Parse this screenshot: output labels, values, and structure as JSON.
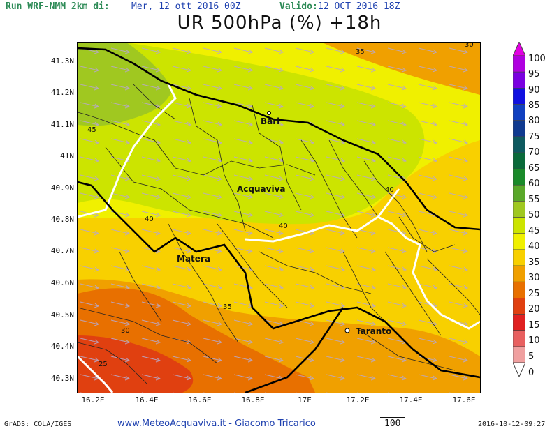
{
  "header": {
    "run_label": "Run WRF-NMM 2km di:",
    "run_date": "Mer, 12 ott 2016 00Z",
    "valid_label": "Valido:",
    "valid_date": "12 OCT 2016 18Z",
    "title": "UR 500hPa (%) +18h"
  },
  "axes": {
    "lat_labels": [
      "41.3N",
      "41.2N",
      "41.1N",
      "41N",
      "40.9N",
      "40.8N",
      "40.7N",
      "40.6N",
      "40.5N",
      "40.4N",
      "40.3N"
    ],
    "lon_labels": [
      "16.2E",
      "16.4E",
      "16.6E",
      "16.8E",
      "17E",
      "17.2E",
      "17.4E",
      "17.6E"
    ]
  },
  "cities": {
    "bari": "Bari",
    "acquaviva": "Acquaviva",
    "matera": "Matera",
    "taranto": "Taranto"
  },
  "contour_labels": {
    "c45": "45",
    "c40a": "40",
    "c40b": "40",
    "c40c": "40",
    "c35a": "35",
    "c35b": "35",
    "c30a": "30",
    "c30b": "30",
    "c25": "25"
  },
  "colorbar": {
    "levels": [
      "100",
      "95",
      "90",
      "85",
      "80",
      "75",
      "70",
      "65",
      "60",
      "55",
      "50",
      "45",
      "40",
      "35",
      "30",
      "25",
      "20",
      "15",
      "10",
      "5",
      "0"
    ],
    "colors": [
      "#e200e2",
      "#b000e0",
      "#7a00e0",
      "#1010e0",
      "#1040c0",
      "#103a90",
      "#0e5a60",
      "#0a6a3a",
      "#1a8a2a",
      "#5aa82a",
      "#a0c820",
      "#cce400",
      "#f0f000",
      "#f8d000",
      "#f0a000",
      "#e87000",
      "#e04010",
      "#e02020",
      "#e86060",
      "#f0a0a0",
      "#ffffff"
    ]
  },
  "footer": {
    "grads": "GrADS: COLA/IGES",
    "site": "www.MeteoAcquaviva.it - Giacomo Tricarico",
    "vector_ref": "100",
    "timestamp": "2016-10-12-09:27"
  }
}
